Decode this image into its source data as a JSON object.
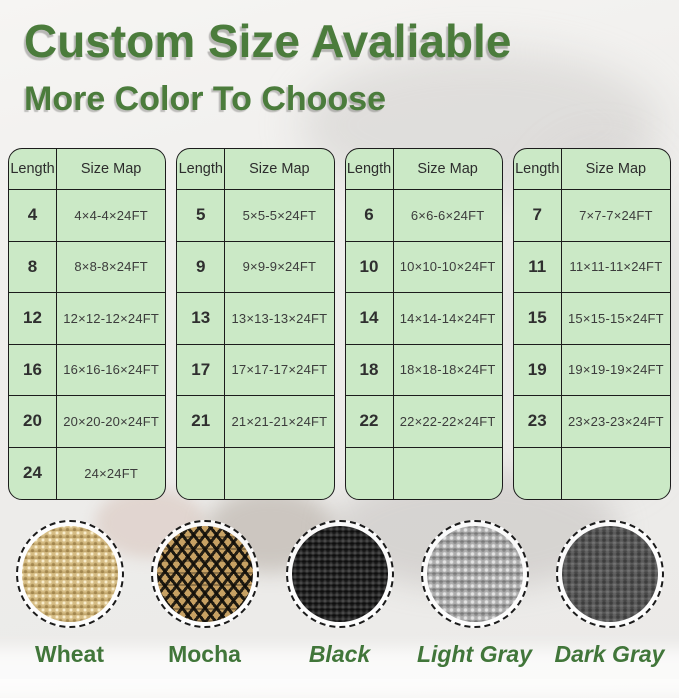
{
  "page": {
    "title": "Custom Size Avaliable",
    "subtitle": "More Color To Choose"
  },
  "colors": {
    "accent_green": "#4b7c3c",
    "label_green": "#41763a",
    "table_background": "#cbe9c6",
    "table_border": "#1c1c1c",
    "cell_text": "#3c3c3c"
  },
  "tables": [
    {
      "headers": [
        "Length",
        "Size Map"
      ],
      "rows": [
        {
          "length": "4",
          "size": "4×4-4×24FT"
        },
        {
          "length": "8",
          "size": "8×8-8×24FT"
        },
        {
          "length": "12",
          "size": "12×12-12×24FT"
        },
        {
          "length": "16",
          "size": "16×16-16×24FT"
        },
        {
          "length": "20",
          "size": "20×20-20×24FT"
        },
        {
          "length": "24",
          "size": "24×24FT"
        }
      ]
    },
    {
      "headers": [
        "Length",
        "Size Map"
      ],
      "rows": [
        {
          "length": "5",
          "size": "5×5-5×24FT"
        },
        {
          "length": "9",
          "size": "9×9-9×24FT"
        },
        {
          "length": "13",
          "size": "13×13-13×24FT"
        },
        {
          "length": "17",
          "size": "17×17-17×24FT"
        },
        {
          "length": "21",
          "size": "21×21-21×24FT"
        },
        {
          "length": "",
          "size": ""
        }
      ]
    },
    {
      "headers": [
        "Length",
        "Size Map"
      ],
      "rows": [
        {
          "length": "6",
          "size": "6×6-6×24FT"
        },
        {
          "length": "10",
          "size": "10×10-10×24FT"
        },
        {
          "length": "14",
          "size": "14×14-14×24FT"
        },
        {
          "length": "18",
          "size": "18×18-18×24FT"
        },
        {
          "length": "22",
          "size": "22×22-22×24FT"
        },
        {
          "length": "",
          "size": ""
        }
      ]
    },
    {
      "headers": [
        "Length",
        "Size Map"
      ],
      "rows": [
        {
          "length": "7",
          "size": "7×7-7×24FT"
        },
        {
          "length": "11",
          "size": "11×11-11×24FT"
        },
        {
          "length": "15",
          "size": "15×15-15×24FT"
        },
        {
          "length": "19",
          "size": "19×19-19×24FT"
        },
        {
          "length": "23",
          "size": "23×23-23×24FT"
        },
        {
          "length": "",
          "size": ""
        }
      ]
    }
  ],
  "swatches": [
    {
      "name": "Wheat",
      "label_style": "normal",
      "base_color": "#d6bd85"
    },
    {
      "name": "Mocha",
      "label_style": "normal",
      "base_color": "#c7a163"
    },
    {
      "name": "Black",
      "label_style": "italic",
      "base_color": "#2e2e2e"
    },
    {
      "name": "Light Gray",
      "label_style": "italic",
      "base_color": "#aeaeae"
    },
    {
      "name": "Dark Gray",
      "label_style": "italic",
      "base_color": "#5b5b5b"
    }
  ]
}
